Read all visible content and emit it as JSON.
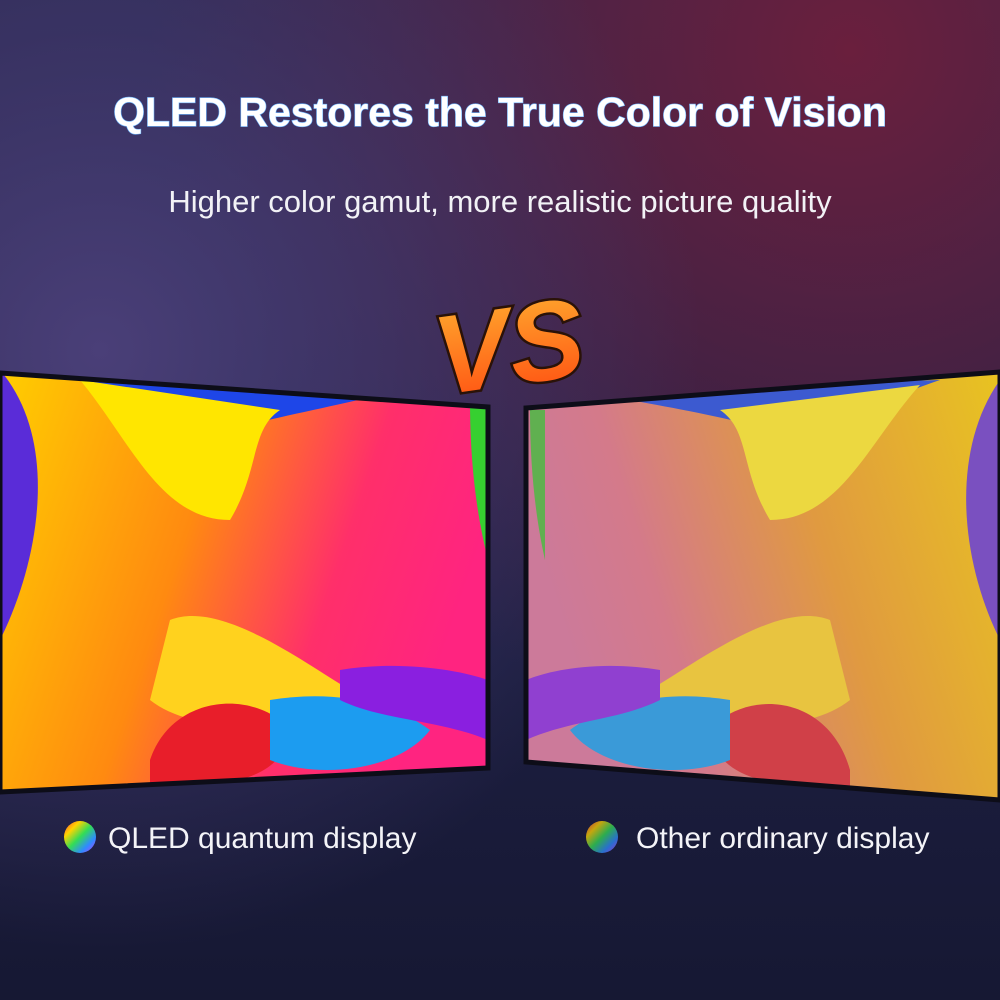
{
  "header": {
    "title": "QLED Restores the True Color of Vision",
    "subtitle": "Higher color gamut, more realistic picture quality"
  },
  "badge": "VS",
  "labels": [
    "QLED quantum display",
    "Other ordinary display"
  ]
}
